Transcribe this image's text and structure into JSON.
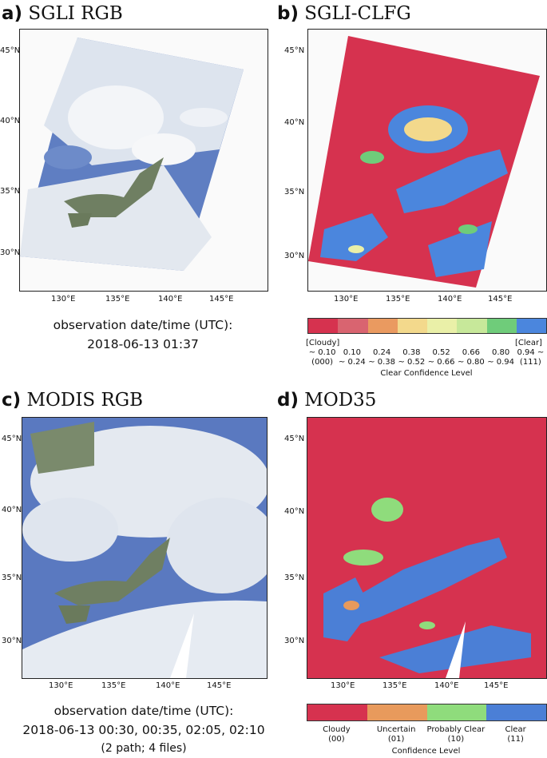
{
  "panels": {
    "a": {
      "letter": "a)",
      "title": "SGLI RGB"
    },
    "b": {
      "letter": "b)",
      "title": "SGLI-CLFG"
    },
    "c": {
      "letter": "c)",
      "title": "MODIS RGB"
    },
    "d": {
      "letter": "d)",
      "title": "MOD35"
    }
  },
  "axes": {
    "lat_ticks": [
      "45°N",
      "40°N",
      "35°N",
      "30°N"
    ],
    "lon_ticks": [
      "130°E",
      "135°E",
      "140°E",
      "145°E"
    ]
  },
  "observation": {
    "sgli_label": "observation date/time (UTC):",
    "sgli_time": "2018-06-13 01:37",
    "modis_label": "observation date/time (UTC):",
    "modis_time": "2018-06-13 00:30, 00:35, 02:05, 02:10",
    "modis_note": "(2 path; 4 files)"
  },
  "clfg_colorbar": {
    "colors": [
      "#d6324f",
      "#d96470",
      "#ea9a60",
      "#f3d98c",
      "#eaf0a8",
      "#c7e89a",
      "#6fcc7a",
      "#4b86dd"
    ],
    "row1": [
      "[Cloudy]",
      "[Clear]"
    ],
    "row2": [
      "~ 0.10",
      "0.10",
      "0.24",
      "0.38",
      "0.52",
      "0.66",
      "0.80",
      "0.94 ~"
    ],
    "row3": [
      "(000)",
      "~ 0.24",
      "~ 0.38",
      "~ 0.52",
      "~ 0.66",
      "~ 0.80",
      "~ 0.94",
      "(111)"
    ],
    "title": "Clear Confidence Level"
  },
  "mod35_colorbar": {
    "colors": [
      "#d6324f",
      "#e89a5c",
      "#8fdc7c",
      "#4b7fd6"
    ],
    "labels": [
      "Cloudy",
      "Uncertain",
      "Probably Clear",
      "Clear"
    ],
    "codes": [
      "(00)",
      "(01)",
      "(10)",
      "(11)"
    ],
    "title": "Confidence Level"
  }
}
